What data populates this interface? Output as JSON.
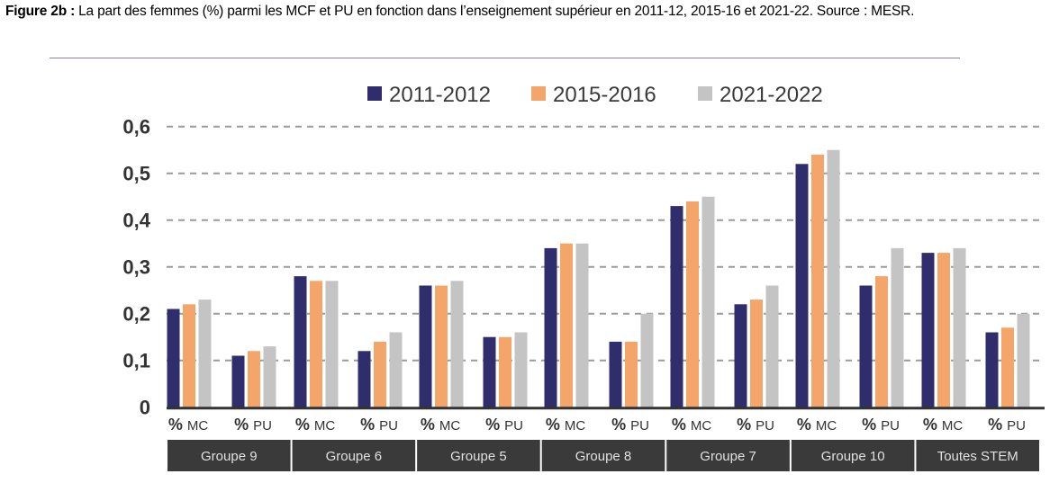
{
  "caption": {
    "label": "Figure 2b :",
    "text": " La part des femmes (%) parmi les MCF et PU en fonction dans l’enseignement supérieur en 2011-12, 2015-16 et 2021-22. Source : MESR."
  },
  "chart_data": {
    "type": "bar",
    "title": "",
    "xlabel": "",
    "ylabel": "",
    "ylim": [
      0,
      0.6
    ],
    "yticks": [
      0,
      0.1,
      0.2,
      0.3,
      0.4,
      0.5,
      0.6
    ],
    "ytick_labels": [
      "0",
      "0,1",
      "0,2",
      "0,3",
      "0,4",
      "0,5",
      "0,6"
    ],
    "grid": "horizontal dashed",
    "legend_position": "top-center",
    "groups": [
      "Groupe 9",
      "Groupe 6",
      "Groupe 5",
      "Groupe 8",
      "Groupe 7",
      "Groupe 10",
      "Toutes STEM"
    ],
    "subcategory_prefix": "%",
    "subcategories": [
      "MC",
      "PU"
    ],
    "categories": [
      "Groupe 9 % MC",
      "Groupe 9 % PU",
      "Groupe 6 % MC",
      "Groupe 6 % PU",
      "Groupe 5 % MC",
      "Groupe 5 % PU",
      "Groupe 8 % MC",
      "Groupe 8 % PU",
      "Groupe 7 % MC",
      "Groupe 7 % PU",
      "Groupe 10 % MC",
      "Groupe 10 % PU",
      "Toutes STEM % MC",
      "Toutes STEM % PU"
    ],
    "series": [
      {
        "name": "2011-2012",
        "color": "#2f2d6b",
        "values": [
          0.21,
          0.11,
          0.28,
          0.12,
          0.26,
          0.15,
          0.34,
          0.14,
          0.43,
          0.22,
          0.52,
          0.26,
          0.33,
          0.16
        ]
      },
      {
        "name": "2015-2016",
        "color": "#f4a66a",
        "values": [
          0.22,
          0.12,
          0.27,
          0.14,
          0.26,
          0.15,
          0.35,
          0.14,
          0.44,
          0.23,
          0.54,
          0.28,
          0.33,
          0.17
        ]
      },
      {
        "name": "2021-2022",
        "color": "#c4c4c4",
        "values": [
          0.23,
          0.13,
          0.27,
          0.16,
          0.27,
          0.16,
          0.35,
          0.2,
          0.45,
          0.26,
          0.55,
          0.34,
          0.34,
          0.2
        ]
      }
    ]
  }
}
